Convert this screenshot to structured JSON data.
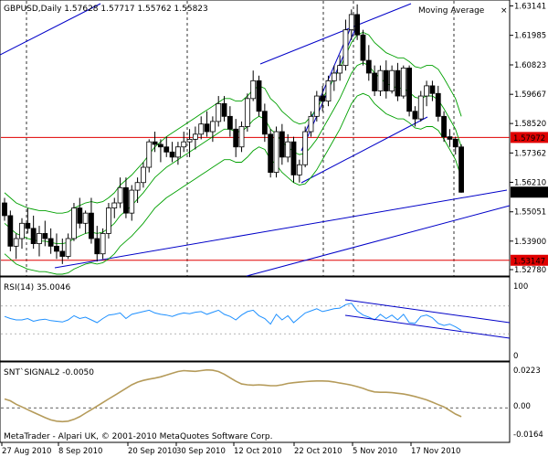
{
  "app": {
    "brand": "MetaTrader - Alpari UK, © 2001-2010 MetaQuotes Software Corp."
  },
  "main_chart": {
    "symbol_line": "GBPUSD,Daily  1.57628 1.57717 1.55762 1.55823",
    "indicator_label": "Moving Average",
    "close_icon": "×",
    "price_ticks": [
      "1.63141",
      "1.61985",
      "1.60823",
      "1.59667",
      "1.58520",
      "1.57362",
      "1.56210",
      "1.55051",
      "1.53900",
      "1.52780"
    ],
    "hlines": [
      {
        "price": "1.57972",
        "color": "#e00000"
      },
      {
        "price": "1.53147",
        "color": "#e00000"
      }
    ],
    "current_price": "1.55823"
  },
  "rsi_panel": {
    "label": "RSI(14) 35.0046",
    "ticks": [
      "100",
      "0"
    ]
  },
  "snt_panel": {
    "label": "SNT`SIGNAL2 -0.0050",
    "ticks": [
      "0.0223",
      "0.00",
      "-0.0164"
    ]
  },
  "x_axis": {
    "ticks": [
      "27 Aug 2010",
      "8 Sep 2010",
      "20 Sep 2010",
      "30 Sep 2010",
      "12 Oct 2010",
      "22 Oct 2010",
      "5 Nov 2010",
      "17 Nov 2010"
    ]
  },
  "chart_data": {
    "type": "candlestick",
    "ohlc": [
      [
        1.554,
        1.556,
        1.547,
        1.549
      ],
      [
        1.549,
        1.551,
        1.535,
        1.537
      ],
      [
        1.537,
        1.542,
        1.532,
        1.54
      ],
      [
        1.54,
        1.548,
        1.536,
        1.546
      ],
      [
        1.546,
        1.552,
        1.542,
        1.544
      ],
      [
        1.544,
        1.549,
        1.536,
        1.538
      ],
      [
        1.538,
        1.545,
        1.533,
        1.542
      ],
      [
        1.542,
        1.547,
        1.537,
        1.54
      ],
      [
        1.54,
        1.544,
        1.534,
        1.537
      ],
      [
        1.537,
        1.542,
        1.532,
        1.535
      ],
      [
        1.535,
        1.54,
        1.53,
        1.533
      ],
      [
        1.533,
        1.542,
        1.532,
        1.54
      ],
      [
        1.54,
        1.554,
        1.539,
        1.552
      ],
      [
        1.552,
        1.556,
        1.544,
        1.546
      ],
      [
        1.546,
        1.551,
        1.542,
        1.55
      ],
      [
        1.55,
        1.556,
        1.538,
        1.54
      ],
      [
        1.54,
        1.545,
        1.531,
        1.534
      ],
      [
        1.534,
        1.544,
        1.532,
        1.542
      ],
      [
        1.542,
        1.554,
        1.54,
        1.552
      ],
      [
        1.552,
        1.556,
        1.548,
        1.554
      ],
      [
        1.554,
        1.564,
        1.552,
        1.56
      ],
      [
        1.56,
        1.564,
        1.548,
        1.55
      ],
      [
        1.55,
        1.561,
        1.547,
        1.559
      ],
      [
        1.559,
        1.564,
        1.554,
        1.562
      ],
      [
        1.562,
        1.57,
        1.56,
        1.568
      ],
      [
        1.568,
        1.579,
        1.566,
        1.578
      ],
      [
        1.578,
        1.582,
        1.574,
        1.577
      ],
      [
        1.577,
        1.579,
        1.57,
        1.576
      ],
      [
        1.576,
        1.58,
        1.572,
        1.574
      ],
      [
        1.574,
        1.578,
        1.57,
        1.572
      ],
      [
        1.572,
        1.578,
        1.569,
        1.576
      ],
      [
        1.576,
        1.582,
        1.574,
        1.578
      ],
      [
        1.578,
        1.583,
        1.572,
        1.579
      ],
      [
        1.579,
        1.584,
        1.575,
        1.581
      ],
      [
        1.581,
        1.588,
        1.579,
        1.585
      ],
      [
        1.585,
        1.59,
        1.58,
        1.582
      ],
      [
        1.582,
        1.588,
        1.578,
        1.586
      ],
      [
        1.586,
        1.596,
        1.584,
        1.593
      ],
      [
        1.593,
        1.596,
        1.586,
        1.588
      ],
      [
        1.588,
        1.592,
        1.58,
        1.583
      ],
      [
        1.583,
        1.587,
        1.572,
        1.576
      ],
      [
        1.576,
        1.586,
        1.574,
        1.584
      ],
      [
        1.584,
        1.597,
        1.582,
        1.595
      ],
      [
        1.595,
        1.606,
        1.594,
        1.602
      ],
      [
        1.602,
        1.604,
        1.588,
        1.59
      ],
      [
        1.59,
        1.593,
        1.578,
        1.581
      ],
      [
        1.581,
        1.583,
        1.564,
        1.566
      ],
      [
        1.566,
        1.584,
        1.564,
        1.582
      ],
      [
        1.582,
        1.585,
        1.569,
        1.572
      ],
      [
        1.572,
        1.581,
        1.57,
        1.578
      ],
      [
        1.578,
        1.58,
        1.562,
        1.565
      ],
      [
        1.565,
        1.571,
        1.562,
        1.569
      ],
      [
        1.569,
        1.584,
        1.568,
        1.582
      ],
      [
        1.582,
        1.59,
        1.58,
        1.588
      ],
      [
        1.588,
        1.598,
        1.586,
        1.596
      ],
      [
        1.596,
        1.6,
        1.59,
        1.594
      ],
      [
        1.594,
        1.604,
        1.592,
        1.602
      ],
      [
        1.602,
        1.608,
        1.598,
        1.605
      ],
      [
        1.605,
        1.612,
        1.602,
        1.608
      ],
      [
        1.608,
        1.626,
        1.606,
        1.622
      ],
      [
        1.622,
        1.63,
        1.618,
        1.628
      ],
      [
        1.628,
        1.632,
        1.618,
        1.62
      ],
      [
        1.62,
        1.622,
        1.608,
        1.61
      ],
      [
        1.61,
        1.616,
        1.602,
        1.605
      ],
      [
        1.605,
        1.608,
        1.596,
        1.598
      ],
      [
        1.598,
        1.608,
        1.596,
        1.606
      ],
      [
        1.606,
        1.61,
        1.595,
        1.598
      ],
      [
        1.598,
        1.608,
        1.597,
        1.606
      ],
      [
        1.606,
        1.609,
        1.594,
        1.596
      ],
      [
        1.596,
        1.608,
        1.595,
        1.607
      ],
      [
        1.607,
        1.608,
        1.588,
        1.59
      ],
      [
        1.59,
        1.592,
        1.584,
        1.587
      ],
      [
        1.587,
        1.598,
        1.586,
        1.596
      ],
      [
        1.596,
        1.602,
        1.592,
        1.6
      ],
      [
        1.6,
        1.602,
        1.594,
        1.597
      ],
      [
        1.597,
        1.6,
        1.586,
        1.588
      ],
      [
        1.588,
        1.59,
        1.578,
        1.58
      ],
      [
        1.58,
        1.583,
        1.576,
        1.579
      ],
      [
        1.579,
        1.58,
        1.573,
        1.576
      ],
      [
        1.576,
        1.577,
        1.558,
        1.5582
      ]
    ],
    "y_range": [
      1.526,
      1.633
    ],
    "moving_average_envelopes": {
      "mid": [
        1.546,
        1.544,
        1.542,
        1.541,
        1.54,
        1.5395,
        1.539,
        1.539,
        1.5385,
        1.538,
        1.538,
        1.5385,
        1.54,
        1.541,
        1.542,
        1.5425,
        1.542,
        1.5425,
        1.544,
        1.546,
        1.549,
        1.551,
        1.553,
        1.5555,
        1.558,
        1.561,
        1.564,
        1.566,
        1.568,
        1.5695,
        1.571,
        1.5725,
        1.574,
        1.5755,
        1.577,
        1.5785,
        1.58,
        1.5815,
        1.583,
        1.583,
        1.582,
        1.582,
        1.584,
        1.5865,
        1.588,
        1.587,
        1.583,
        1.581,
        1.578,
        1.576,
        1.574,
        1.573,
        1.5735,
        1.576,
        1.579,
        1.583,
        1.587,
        1.591,
        1.595,
        1.6,
        1.605,
        1.608,
        1.609,
        1.608,
        1.605,
        1.603,
        1.601,
        1.6,
        1.599,
        1.599,
        1.5975,
        1.5955,
        1.595,
        1.596,
        1.596,
        1.5945,
        1.591,
        1.587,
        1.583,
        1.576
      ],
      "offset": 0.012
    },
    "rsi": [
      55,
      52,
      50,
      50,
      52,
      48,
      50,
      51,
      49,
      48,
      47,
      50,
      56,
      52,
      54,
      50,
      46,
      52,
      57,
      58,
      60,
      52,
      58,
      60,
      62,
      64,
      60,
      58,
      57,
      55,
      58,
      60,
      59,
      61,
      62,
      58,
      61,
      64,
      58,
      55,
      50,
      57,
      62,
      64,
      56,
      52,
      44,
      58,
      50,
      56,
      46,
      53,
      60,
      63,
      66,
      62,
      64,
      66,
      67,
      72,
      74,
      63,
      57,
      54,
      50,
      58,
      52,
      57,
      50,
      58,
      46,
      45,
      55,
      57,
      53,
      45,
      42,
      44,
      40,
      35
    ],
    "snt": [
      0.005,
      0.004,
      0.002,
      0.0005,
      -0.001,
      -0.0025,
      -0.004,
      -0.0055,
      -0.0068,
      -0.0075,
      -0.0078,
      -0.0075,
      -0.0065,
      -0.005,
      -0.003,
      -0.001,
      0.001,
      0.003,
      0.005,
      0.007,
      0.009,
      0.011,
      0.013,
      0.0145,
      0.0155,
      0.0162,
      0.0168,
      0.0175,
      0.0185,
      0.0195,
      0.0205,
      0.021,
      0.0208,
      0.0206,
      0.021,
      0.0214,
      0.0212,
      0.0205,
      0.019,
      0.017,
      0.015,
      0.0135,
      0.013,
      0.0128,
      0.013,
      0.0128,
      0.0125,
      0.0125,
      0.013,
      0.0138,
      0.0142,
      0.0145,
      0.0148,
      0.015,
      0.0152,
      0.0152,
      0.015,
      0.0146,
      0.014,
      0.0135,
      0.0128,
      0.012,
      0.011,
      0.0098,
      0.009,
      0.0088,
      0.0088,
      0.0086,
      0.0082,
      0.0078,
      0.0072,
      0.0064,
      0.0055,
      0.0045,
      0.0032,
      0.0018,
      0.0005,
      -0.0015,
      -0.0035,
      -0.005
    ]
  }
}
